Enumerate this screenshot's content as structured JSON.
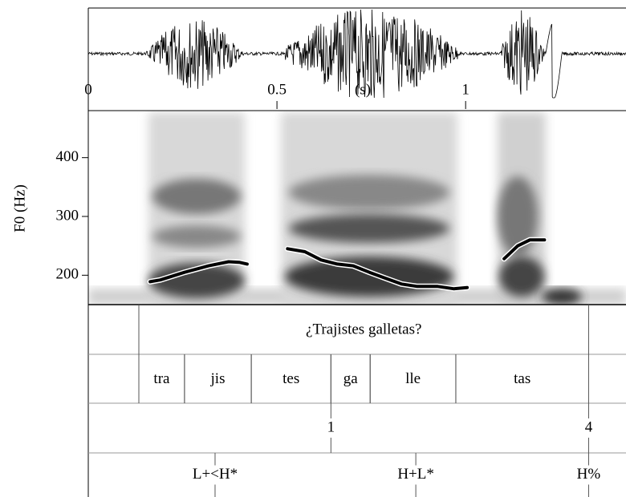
{
  "chart_data": {
    "type": "line",
    "ylabel": "F0 (Hz)",
    "xlabel": "(s)",
    "xlim": [
      0,
      1.425
    ],
    "ylim": [
      150,
      480
    ],
    "xticks": [
      0,
      {
        "value": 0.5,
        "label": "0.5"
      },
      1
    ],
    "yticks": [
      200,
      300,
      400
    ],
    "series": [
      {
        "color": "#000000",
        "x": [
          0.164,
          0.191,
          0.255,
          0.319,
          0.372,
          0.4,
          0.421,
          0.47,
          0.528,
          0.574,
          0.617,
          0.66,
          0.702,
          0.745,
          0.787,
          0.83,
          0.872,
          0.926,
          0.968,
          1.004,
          1.05,
          1.102,
          1.138,
          1.17,
          1.209
        ],
        "values": [
          189,
          192,
          205,
          216,
          223,
          222,
          219,
          null,
          245,
          240,
          226,
          219,
          216,
          205,
          195,
          185,
          181,
          181,
          177,
          179,
          null,
          228,
          250,
          260,
          260
        ]
      }
    ]
  },
  "tiers": [
    {
      "intervals": [
        {
          "start": 0.134,
          "end": 1.326,
          "text": "¿Trajistes galletas?"
        }
      ]
    },
    {
      "intervals": [
        {
          "start": 0.134,
          "end": 0.255,
          "text": "tra"
        },
        {
          "start": 0.255,
          "end": 0.432,
          "text": "jis"
        },
        {
          "start": 0.432,
          "end": 0.643,
          "text": "tes"
        },
        {
          "start": 0.643,
          "end": 0.747,
          "text": "ga"
        },
        {
          "start": 0.747,
          "end": 0.974,
          "text": "lle"
        },
        {
          "start": 0.974,
          "end": 1.326,
          "text": "tas"
        }
      ]
    },
    {
      "points": [
        {
          "time": 0.643,
          "text": "1"
        },
        {
          "time": 1.326,
          "text": "4"
        }
      ]
    },
    {
      "points": [
        {
          "time": 0.336,
          "text": "L+<H*"
        },
        {
          "time": 0.868,
          "text": "H+L*"
        },
        {
          "time": 1.326,
          "text": "H%"
        }
      ]
    }
  ]
}
